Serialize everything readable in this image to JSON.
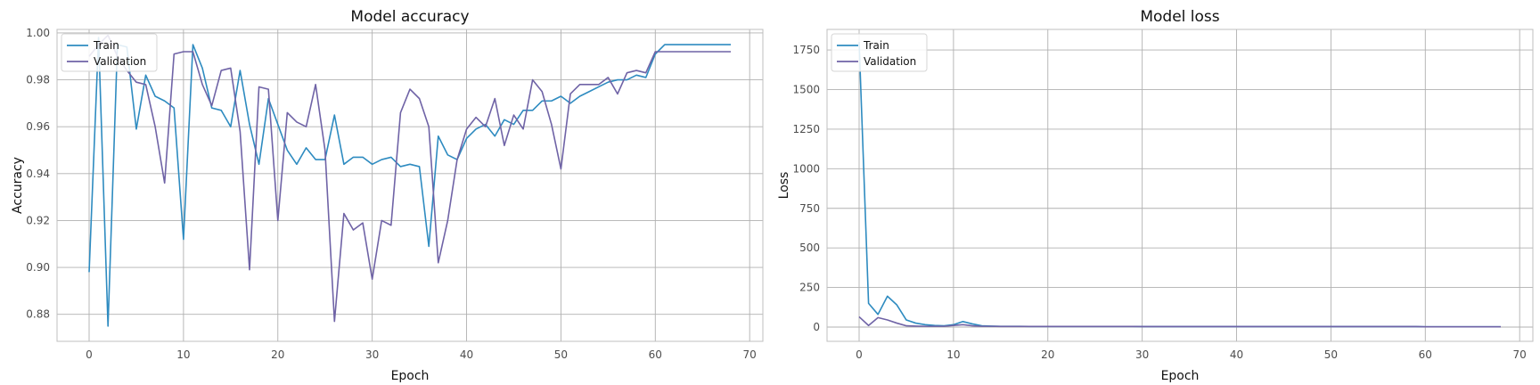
{
  "colors": {
    "train": "#2e8bc0",
    "validation": "#6f63a6",
    "grid": "#b0b0b0",
    "spine": "#bfbfbf",
    "tick_text": "#4d4d4d",
    "label_text": "#111111"
  },
  "chart_data": [
    {
      "type": "line",
      "title": "Model accuracy",
      "xlabel": "Epoch",
      "ylabel": "Accuracy",
      "xlim": [
        -3.4,
        71.4
      ],
      "ylim": [
        0.8685,
        1.0015
      ],
      "xticks": [
        0,
        10,
        20,
        30,
        40,
        50,
        60,
        70
      ],
      "xtick_labels": [
        "0",
        "10",
        "20",
        "30",
        "40",
        "50",
        "60",
        "70"
      ],
      "yticks": [
        0.88,
        0.9,
        0.92,
        0.94,
        0.96,
        0.98,
        1.0
      ],
      "ytick_labels": [
        "0.88",
        "0.90",
        "0.92",
        "0.94",
        "0.96",
        "0.98",
        "1.00"
      ],
      "grid": true,
      "legend": "top-left",
      "series": [
        {
          "name": "Train",
          "values": [
            0.898,
            0.998,
            0.875,
            0.995,
            0.994,
            0.959,
            0.982,
            0.973,
            0.971,
            0.968,
            0.912,
            0.995,
            0.985,
            0.968,
            0.967,
            0.96,
            0.984,
            0.961,
            0.944,
            0.972,
            0.961,
            0.95,
            0.944,
            0.951,
            0.946,
            0.946,
            0.965,
            0.944,
            0.947,
            0.947,
            0.944,
            0.946,
            0.947,
            0.943,
            0.944,
            0.943,
            0.909,
            0.956,
            0.948,
            0.946,
            0.955,
            0.959,
            0.961,
            0.956,
            0.963,
            0.961,
            0.967,
            0.967,
            0.971,
            0.971,
            0.973,
            0.97,
            0.973,
            0.975,
            0.977,
            0.979,
            0.98,
            0.98,
            0.982,
            0.981,
            0.991,
            0.995,
            0.995,
            0.995,
            0.995,
            0.995,
            0.995,
            0.995,
            0.995
          ]
        },
        {
          "name": "Validation",
          "values": [
            0.99,
            0.995,
            0.999,
            0.99,
            0.984,
            0.979,
            0.978,
            0.96,
            0.936,
            0.991,
            0.992,
            0.992,
            0.978,
            0.969,
            0.984,
            0.985,
            0.958,
            0.899,
            0.977,
            0.976,
            0.92,
            0.966,
            0.962,
            0.96,
            0.978,
            0.95,
            0.877,
            0.923,
            0.916,
            0.919,
            0.895,
            0.92,
            0.918,
            0.966,
            0.976,
            0.972,
            0.96,
            0.902,
            0.92,
            0.946,
            0.959,
            0.964,
            0.96,
            0.972,
            0.952,
            0.965,
            0.959,
            0.98,
            0.975,
            0.961,
            0.942,
            0.974,
            0.978,
            0.978,
            0.978,
            0.981,
            0.974,
            0.983,
            0.984,
            0.983,
            0.992,
            0.992,
            0.992,
            0.992,
            0.992,
            0.992,
            0.992,
            0.992,
            0.992
          ]
        }
      ]
    },
    {
      "type": "line",
      "title": "Model loss",
      "xlabel": "Epoch",
      "ylabel": "Loss",
      "xlim": [
        -3.4,
        71.4
      ],
      "ylim": [
        -90,
        1880
      ],
      "xticks": [
        0,
        10,
        20,
        30,
        40,
        50,
        60,
        70
      ],
      "xtick_labels": [
        "0",
        "10",
        "20",
        "30",
        "40",
        "50",
        "60",
        "70"
      ],
      "yticks": [
        0,
        250,
        500,
        750,
        1000,
        1250,
        1500,
        1750
      ],
      "ytick_labels": [
        "0",
        "250",
        "500",
        "750",
        "1000",
        "1250",
        "1500",
        "1750"
      ],
      "grid": true,
      "legend": "top-left",
      "series": [
        {
          "name": "Train",
          "values": [
            1800,
            150,
            80,
            195,
            140,
            45,
            25,
            15,
            10,
            8,
            15,
            35,
            20,
            8,
            6,
            5,
            5,
            5,
            4,
            4,
            4,
            4,
            4,
            4,
            4,
            4,
            4,
            4,
            4,
            4,
            3,
            3,
            3,
            3,
            3,
            3,
            3,
            3,
            3,
            3,
            3,
            3,
            3,
            3,
            3,
            3,
            3,
            3,
            3,
            3,
            3,
            3,
            3,
            3,
            3,
            3,
            3,
            3,
            3,
            3,
            2,
            2,
            2,
            2,
            2,
            2,
            2,
            2,
            2
          ]
        },
        {
          "name": "Validation",
          "values": [
            65,
            10,
            60,
            45,
            25,
            8,
            6,
            5,
            5,
            5,
            10,
            15,
            8,
            5,
            5,
            4,
            4,
            4,
            4,
            4,
            4,
            4,
            4,
            4,
            4,
            4,
            4,
            4,
            4,
            4,
            3,
            3,
            3,
            3,
            3,
            3,
            3,
            3,
            3,
            3,
            3,
            3,
            3,
            3,
            3,
            3,
            3,
            3,
            3,
            3,
            3,
            3,
            3,
            3,
            3,
            3,
            3,
            3,
            3,
            3,
            2,
            2,
            2,
            2,
            2,
            2,
            2,
            2,
            2
          ]
        }
      ]
    }
  ]
}
